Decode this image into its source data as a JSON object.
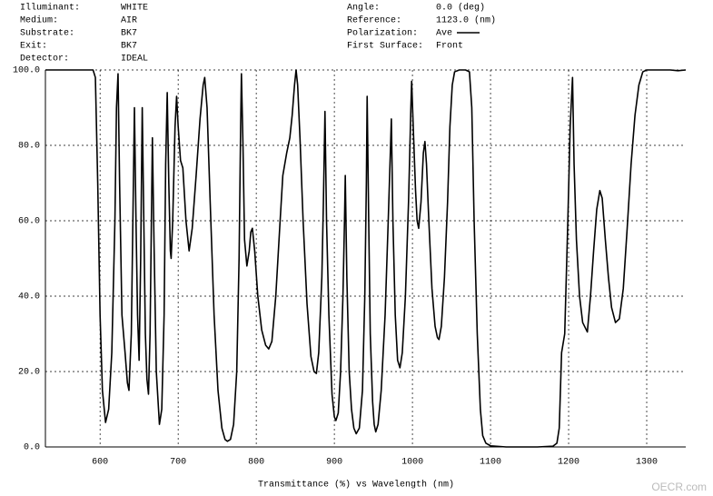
{
  "chart_data": {
    "type": "line",
    "header_left": [
      {
        "label": "Illuminant:",
        "value": "WHITE"
      },
      {
        "label": "Medium:",
        "value": "AIR"
      },
      {
        "label": "Substrate:",
        "value": "BK7"
      },
      {
        "label": "Exit:",
        "value": "BK7"
      },
      {
        "label": "Detector:",
        "value": "IDEAL"
      }
    ],
    "header_right": [
      {
        "label": "Angle:",
        "value": "0.0 (deg)"
      },
      {
        "label": "Reference:",
        "value": "1123.0 (nm)"
      },
      {
        "label": "Polarization:",
        "value": "Ave"
      },
      {
        "label": "First Surface:",
        "value": "Front"
      }
    ],
    "xlabel": "Transmittance (%)  vs  Wavelength (nm)",
    "watermark": "OECR.com",
    "xlim": [
      530,
      1350
    ],
    "ylim": [
      0,
      100
    ],
    "xticks": [
      600,
      700,
      800,
      900,
      1000,
      1100,
      1200,
      1300
    ],
    "yticks": [
      {
        "value": 0,
        "label": "0.0"
      },
      {
        "value": 20,
        "label": "20.0"
      },
      {
        "value": 40,
        "label": "40.0"
      },
      {
        "value": 60,
        "label": "60.0"
      },
      {
        "value": 80,
        "label": "80.0"
      },
      {
        "value": 100,
        "label": "100.0"
      }
    ],
    "grid": true,
    "x": [
      530,
      591,
      594,
      597,
      600,
      603,
      607,
      611,
      615,
      619,
      621,
      623,
      625,
      628,
      632,
      635,
      637,
      640,
      642,
      644,
      646,
      648,
      650,
      652,
      654,
      656,
      658,
      660,
      662,
      664,
      666,
      667,
      669,
      672,
      676,
      679,
      682,
      684,
      686,
      688,
      690,
      691,
      693,
      696,
      698,
      700,
      703,
      706,
      710,
      714,
      718,
      723,
      728,
      732,
      734,
      737,
      741,
      746,
      751,
      756,
      760,
      763,
      767,
      771,
      775,
      778,
      780,
      781,
      783,
      785,
      788,
      791,
      793,
      795,
      798,
      802,
      807,
      812,
      816,
      820,
      825,
      830,
      834,
      839,
      843,
      846,
      849,
      851,
      853,
      856,
      860,
      865,
      870,
      874,
      877,
      880,
      884,
      886,
      888,
      890,
      893,
      897,
      900,
      902,
      905,
      908,
      911,
      913,
      914,
      916,
      919,
      922,
      925,
      928,
      932,
      936,
      939,
      941,
      942,
      944,
      946,
      949,
      951,
      953,
      956,
      960,
      965,
      969,
      972,
      973,
      975,
      978,
      981,
      984,
      987,
      991,
      995,
      998,
      999,
      1001,
      1004,
      1006,
      1008,
      1011,
      1014,
      1016,
      1018,
      1021,
      1025,
      1029,
      1032,
      1034,
      1037,
      1041,
      1045,
      1048,
      1051,
      1054,
      1060,
      1068,
      1073,
      1076,
      1079,
      1083,
      1087,
      1090,
      1094,
      1100,
      1120,
      1160,
      1180,
      1185,
      1188,
      1191,
      1195,
      1199,
      1202,
      1205,
      1207,
      1210,
      1214,
      1218,
      1224,
      1228,
      1232,
      1236,
      1240,
      1243,
      1247,
      1251,
      1255,
      1260,
      1265,
      1270,
      1275,
      1280,
      1285,
      1290,
      1295,
      1300,
      1330,
      1340,
      1350
    ],
    "series": [
      {
        "name": "Ave",
        "color": "#000000",
        "values": [
          100,
          100,
          98,
          70,
          35,
          15,
          6.5,
          10,
          25,
          60,
          90,
          99,
          70,
          35,
          25,
          17,
          15,
          30,
          60,
          90,
          60,
          35,
          23,
          50,
          90,
          60,
          30,
          18,
          14,
          30,
          65,
          82,
          55,
          20,
          6,
          10,
          35,
          75,
          94,
          70,
          52,
          50,
          60,
          85,
          93,
          85,
          76,
          74,
          60,
          52,
          58,
          72,
          87,
          96,
          98,
          90,
          65,
          35,
          15,
          5,
          2,
          1.5,
          2,
          6,
          20,
          50,
          85,
          99,
          80,
          55,
          48,
          52,
          57,
          58,
          52,
          40,
          31,
          27,
          26,
          28,
          40,
          58,
          72,
          78,
          82,
          88,
          96,
          100,
          96,
          82,
          60,
          38,
          24,
          20,
          19.5,
          25,
          45,
          65,
          89,
          60,
          35,
          14,
          8,
          7,
          9,
          20,
          40,
          60,
          72,
          45,
          20,
          10,
          5,
          3.5,
          5,
          15,
          40,
          70,
          93,
          60,
          30,
          12,
          6,
          4,
          6,
          15,
          35,
          60,
          80,
          87,
          60,
          35,
          23,
          21,
          25,
          40,
          65,
          90,
          97,
          85,
          68,
          60,
          58,
          65,
          78,
          81,
          75,
          60,
          42,
          32,
          29,
          28.5,
          32,
          45,
          65,
          85,
          96,
          99.5,
          100,
          100,
          99.5,
          90,
          60,
          30,
          10,
          3,
          1,
          0.3,
          0,
          0,
          0.2,
          1,
          5,
          25,
          30,
          60,
          85,
          98,
          75,
          55,
          40,
          33,
          30.5,
          40,
          52,
          63,
          68,
          66,
          55,
          45,
          37,
          33,
          34,
          42,
          58,
          75,
          88,
          96,
          99.5,
          100,
          100,
          99.8,
          100
        ]
      }
    ]
  }
}
